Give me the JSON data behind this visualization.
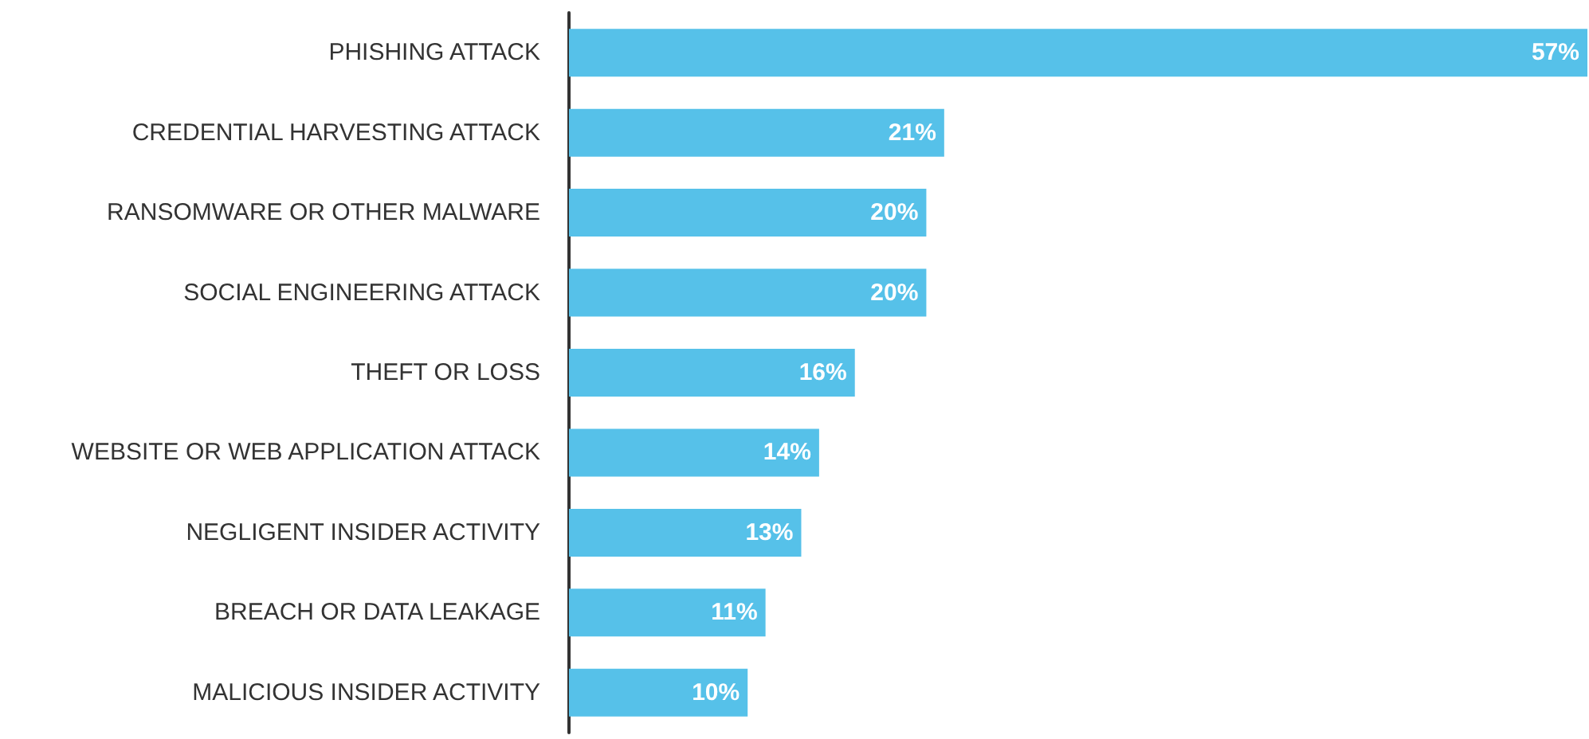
{
  "chart_data": {
    "type": "bar",
    "orientation": "horizontal",
    "categories": [
      "PHISHING ATTACK",
      "CREDENTIAL HARVESTING ATTACK",
      "RANSOMWARE OR OTHER MALWARE",
      "SOCIAL ENGINEERING ATTACK",
      "THEFT OR LOSS",
      "WEBSITE OR WEB APPLICATION ATTACK",
      "NEGLIGENT INSIDER ACTIVITY",
      "BREACH OR DATA LEAKAGE",
      "MALICIOUS INSIDER ACTIVITY"
    ],
    "values": [
      57,
      21,
      20,
      20,
      16,
      14,
      13,
      11,
      10
    ],
    "value_labels": [
      "57%",
      "21%",
      "20%",
      "20%",
      "16%",
      "14%",
      "13%",
      "11%",
      "10%"
    ],
    "color": "#56c1e9"
  }
}
